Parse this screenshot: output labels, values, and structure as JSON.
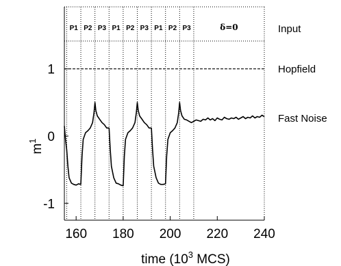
{
  "chart_data": {
    "type": "line",
    "xlabel_main": "time (10",
    "xlabel_sup": "3",
    "xlabel_tail": " MCS)",
    "ylabel_main": "m",
    "ylabel_sup": "1",
    "xlim": [
      155,
      240
    ],
    "ylim": [
      -1.15,
      1.15
    ],
    "x_ticks": [
      160,
      180,
      200,
      220,
      240
    ],
    "y_ticks": [
      -1,
      0,
      1
    ],
    "grid": false,
    "phase_boundaries": [
      156,
      162,
      168,
      174,
      180,
      186,
      192,
      198,
      204,
      210
    ],
    "phase_labels": [
      "P1",
      "P2",
      "P3",
      "P1",
      "P2",
      "P3",
      "P1",
      "P2",
      "P3"
    ],
    "delta_label": "δ=0",
    "row_labels": {
      "input": "Input",
      "hopfield": "Hopfield",
      "fast_noise": "Fast Noise"
    },
    "series": [
      {
        "name": "Hopfield",
        "style": "dashed",
        "x": [
          155,
          240
        ],
        "y": [
          1,
          1
        ]
      },
      {
        "name": "Fast Noise",
        "style": "solid",
        "x": [
          155.0,
          155.5,
          156.0,
          156.5,
          157.0,
          158.0,
          159.0,
          160.0,
          161.0,
          162.0,
          162.5,
          163.0,
          164.0,
          165.0,
          166.0,
          167.0,
          167.6,
          168.0,
          168.4,
          169.0,
          170.0,
          171.0,
          172.0,
          173.0,
          174.0,
          174.5,
          175.0,
          176.0,
          177.0,
          178.0,
          179.0,
          180.0,
          180.5,
          181.0,
          182.0,
          183.0,
          184.0,
          185.0,
          185.6,
          186.0,
          186.4,
          187.0,
          188.0,
          189.0,
          190.0,
          191.0,
          192.0,
          192.5,
          193.0,
          194.0,
          195.0,
          196.0,
          197.0,
          198.0,
          198.5,
          199.0,
          200.0,
          201.0,
          202.0,
          203.0,
          203.6,
          204.0,
          204.4,
          205.0,
          206.0,
          207.0,
          208.0,
          209.0,
          210.0,
          211.0,
          212.0,
          213.0,
          214.0,
          215.0,
          216.0,
          217.0,
          218.0,
          219.0,
          220.0,
          221.0,
          222.0,
          223.0,
          224.0,
          225.0,
          226.0,
          227.0,
          228.0,
          229.0,
          230.0,
          231.0,
          232.0,
          233.0,
          234.0,
          235.0,
          236.0,
          237.0,
          238.0,
          239.0,
          240.0
        ],
        "y": [
          0.15,
          -0.05,
          -0.2,
          -0.45,
          -0.62,
          -0.7,
          -0.72,
          -0.73,
          -0.71,
          -0.72,
          -0.3,
          -0.05,
          0.05,
          0.08,
          0.12,
          0.2,
          0.35,
          0.5,
          0.38,
          0.3,
          0.25,
          0.2,
          0.17,
          0.12,
          0.12,
          -0.2,
          -0.45,
          -0.62,
          -0.7,
          -0.71,
          -0.73,
          -0.74,
          -0.3,
          -0.05,
          0.05,
          0.08,
          0.12,
          0.2,
          0.35,
          0.5,
          0.38,
          0.3,
          0.25,
          0.2,
          0.17,
          0.12,
          0.12,
          -0.2,
          -0.45,
          -0.62,
          -0.7,
          -0.72,
          -0.72,
          -0.71,
          -0.3,
          -0.05,
          0.05,
          0.08,
          0.12,
          0.2,
          0.35,
          0.5,
          0.38,
          0.3,
          0.25,
          0.24,
          0.22,
          0.2,
          0.22,
          0.24,
          0.23,
          0.22,
          0.25,
          0.24,
          0.27,
          0.24,
          0.26,
          0.23,
          0.27,
          0.25,
          0.24,
          0.28,
          0.26,
          0.25,
          0.27,
          0.26,
          0.28,
          0.25,
          0.27,
          0.29,
          0.26,
          0.28,
          0.27,
          0.3,
          0.27,
          0.29,
          0.28,
          0.31,
          0.29
        ]
      }
    ]
  }
}
